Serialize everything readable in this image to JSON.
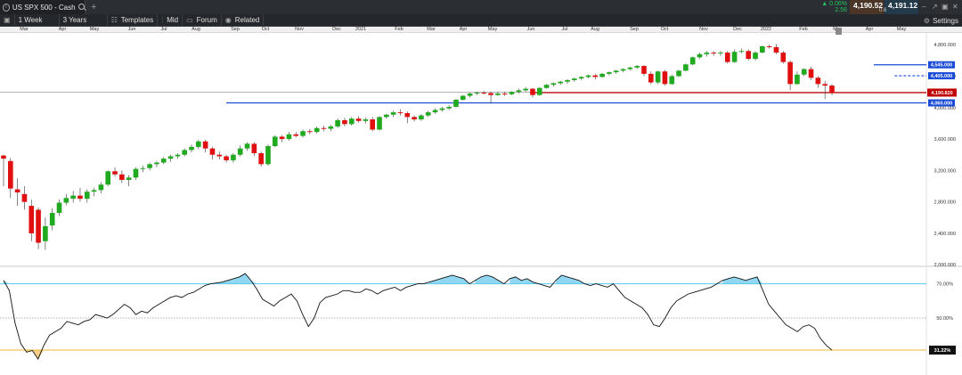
{
  "tab": {
    "title": "US SPX 500 - Cash",
    "add": "+"
  },
  "quote": {
    "change_pct": "▲ 0.06%",
    "change_abs": "2.56",
    "bid": "4,190.52",
    "ask": "4,191.12",
    "spread": "0.6"
  },
  "window_controls": [
    "–",
    "↗",
    "▣",
    "✕"
  ],
  "toolbar": {
    "interval": "1 Week",
    "range": "3 Years",
    "templates": "Templates",
    "price_type": "Mid",
    "forum": "Forum",
    "related": "Related",
    "settings": "Settings"
  },
  "months": [
    "Mar",
    "Apr",
    "May",
    "Jun",
    "Jul",
    "Aug",
    "Sep",
    "Oct",
    "Nov",
    "Dec",
    "2021",
    "Feb",
    "Mar",
    "Apr",
    "May",
    "Jun",
    "Jul",
    "Aug",
    "Sep",
    "Oct",
    "Nov",
    "Dec",
    "2022",
    "Feb",
    "Mar",
    "Apr",
    "May"
  ],
  "colors": {
    "up": "#1faa1f",
    "down": "#e01010",
    "line_blue": "#1a4bd6",
    "current_price": "#c00000",
    "rsi_upper": "#5bc8e8",
    "rsi_lower": "#e8b830",
    "rsi_over_fill": "#7fd0ee",
    "rsi_under_fill": "#f5c77a"
  },
  "chart_data": {
    "type": "candlestick",
    "price_axis": {
      "ticks": [
        2000,
        2400,
        2800,
        3200,
        3600,
        4000,
        4400,
        4800
      ],
      "labels": [
        "2,000.000",
        "2,400.000",
        "2,800.000",
        "3,200.000",
        "3,600.000",
        "4,000.000",
        "4,400.000",
        "4,800.000"
      ],
      "range": [
        1980,
        4950
      ]
    },
    "current_price": {
      "value": 4190.82,
      "label": "4,190.820"
    },
    "horizontal_levels": [
      {
        "value": 4545,
        "label": "4,545.000",
        "style": "solid",
        "from_index": 125
      },
      {
        "value": 4405,
        "label": "4,405.000",
        "style": "dashed",
        "from_index": 128
      },
      {
        "value": 4060,
        "label": "4,060.000",
        "style": "solid",
        "from_index": 32
      }
    ],
    "candles": [
      {
        "o": 3390,
        "h": 3400,
        "l": 3000,
        "c": 3350
      },
      {
        "o": 3320,
        "h": 3360,
        "l": 2850,
        "c": 2970
      },
      {
        "o": 2960,
        "h": 3100,
        "l": 2750,
        "c": 2920
      },
      {
        "o": 2900,
        "h": 3000,
        "l": 2700,
        "c": 2800
      },
      {
        "o": 2750,
        "h": 2830,
        "l": 2300,
        "c": 2400
      },
      {
        "o": 2700,
        "h": 2730,
        "l": 2200,
        "c": 2280
      },
      {
        "o": 2300,
        "h": 2600,
        "l": 2190,
        "c": 2490
      },
      {
        "o": 2500,
        "h": 2720,
        "l": 2440,
        "c": 2660
      },
      {
        "o": 2660,
        "h": 2830,
        "l": 2620,
        "c": 2790
      },
      {
        "o": 2790,
        "h": 2900,
        "l": 2760,
        "c": 2850
      },
      {
        "o": 2840,
        "h": 2940,
        "l": 2790,
        "c": 2880
      },
      {
        "o": 2880,
        "h": 2980,
        "l": 2800,
        "c": 2840
      },
      {
        "o": 2840,
        "h": 2960,
        "l": 2790,
        "c": 2930
      },
      {
        "o": 2930,
        "h": 2980,
        "l": 2870,
        "c": 2950
      },
      {
        "o": 2950,
        "h": 3050,
        "l": 2910,
        "c": 3020
      },
      {
        "o": 3020,
        "h": 3200,
        "l": 3000,
        "c": 3190
      },
      {
        "o": 3190,
        "h": 3240,
        "l": 3120,
        "c": 3150
      },
      {
        "o": 3150,
        "h": 3200,
        "l": 3040,
        "c": 3080
      },
      {
        "o": 3080,
        "h": 3140,
        "l": 3000,
        "c": 3110
      },
      {
        "o": 3110,
        "h": 3240,
        "l": 3080,
        "c": 3220
      },
      {
        "o": 3220,
        "h": 3260,
        "l": 3180,
        "c": 3230
      },
      {
        "o": 3230,
        "h": 3300,
        "l": 3200,
        "c": 3280
      },
      {
        "o": 3280,
        "h": 3320,
        "l": 3240,
        "c": 3300
      },
      {
        "o": 3300,
        "h": 3370,
        "l": 3280,
        "c": 3350
      },
      {
        "o": 3350,
        "h": 3400,
        "l": 3310,
        "c": 3380
      },
      {
        "o": 3380,
        "h": 3420,
        "l": 3350,
        "c": 3400
      },
      {
        "o": 3400,
        "h": 3480,
        "l": 3380,
        "c": 3460
      },
      {
        "o": 3460,
        "h": 3530,
        "l": 3430,
        "c": 3500
      },
      {
        "o": 3500,
        "h": 3590,
        "l": 3470,
        "c": 3570
      },
      {
        "o": 3570,
        "h": 3590,
        "l": 3430,
        "c": 3480
      },
      {
        "o": 3480,
        "h": 3500,
        "l": 3340,
        "c": 3400
      },
      {
        "o": 3400,
        "h": 3440,
        "l": 3340,
        "c": 3380
      },
      {
        "o": 3380,
        "h": 3400,
        "l": 3300,
        "c": 3330
      },
      {
        "o": 3330,
        "h": 3420,
        "l": 3300,
        "c": 3400
      },
      {
        "o": 3400,
        "h": 3520,
        "l": 3380,
        "c": 3480
      },
      {
        "o": 3480,
        "h": 3560,
        "l": 3450,
        "c": 3540
      },
      {
        "o": 3540,
        "h": 3560,
        "l": 3380,
        "c": 3420
      },
      {
        "o": 3420,
        "h": 3440,
        "l": 3250,
        "c": 3280
      },
      {
        "o": 3280,
        "h": 3530,
        "l": 3260,
        "c": 3510
      },
      {
        "o": 3510,
        "h": 3650,
        "l": 3500,
        "c": 3630
      },
      {
        "o": 3630,
        "h": 3650,
        "l": 3560,
        "c": 3600
      },
      {
        "o": 3600,
        "h": 3690,
        "l": 3580,
        "c": 3660
      },
      {
        "o": 3660,
        "h": 3690,
        "l": 3620,
        "c": 3640
      },
      {
        "o": 3640,
        "h": 3720,
        "l": 3620,
        "c": 3700
      },
      {
        "o": 3700,
        "h": 3730,
        "l": 3660,
        "c": 3690
      },
      {
        "o": 3690,
        "h": 3760,
        "l": 3670,
        "c": 3740
      },
      {
        "o": 3740,
        "h": 3770,
        "l": 3700,
        "c": 3730
      },
      {
        "o": 3730,
        "h": 3780,
        "l": 3700,
        "c": 3760
      },
      {
        "o": 3760,
        "h": 3860,
        "l": 3740,
        "c": 3840
      },
      {
        "o": 3840,
        "h": 3870,
        "l": 3760,
        "c": 3790
      },
      {
        "o": 3790,
        "h": 3880,
        "l": 3770,
        "c": 3860
      },
      {
        "o": 3860,
        "h": 3890,
        "l": 3810,
        "c": 3830
      },
      {
        "o": 3830,
        "h": 3870,
        "l": 3800,
        "c": 3850
      },
      {
        "o": 3850,
        "h": 3880,
        "l": 3700,
        "c": 3720
      },
      {
        "o": 3720,
        "h": 3890,
        "l": 3710,
        "c": 3880
      },
      {
        "o": 3880,
        "h": 3920,
        "l": 3860,
        "c": 3910
      },
      {
        "o": 3910,
        "h": 3960,
        "l": 3880,
        "c": 3940
      },
      {
        "o": 3940,
        "h": 3980,
        "l": 3900,
        "c": 3930
      },
      {
        "o": 3930,
        "h": 3950,
        "l": 3800,
        "c": 3880
      },
      {
        "o": 3880,
        "h": 3900,
        "l": 3820,
        "c": 3850
      },
      {
        "o": 3850,
        "h": 3920,
        "l": 3830,
        "c": 3900
      },
      {
        "o": 3900,
        "h": 3960,
        "l": 3880,
        "c": 3940
      },
      {
        "o": 3940,
        "h": 3990,
        "l": 3920,
        "c": 3970
      },
      {
        "o": 3970,
        "h": 4010,
        "l": 3950,
        "c": 3990
      },
      {
        "o": 3990,
        "h": 4030,
        "l": 3970,
        "c": 4010
      },
      {
        "o": 4010,
        "h": 4110,
        "l": 4000,
        "c": 4100
      },
      {
        "o": 4100,
        "h": 4160,
        "l": 4090,
        "c": 4150
      },
      {
        "o": 4150,
        "h": 4190,
        "l": 4130,
        "c": 4180
      },
      {
        "o": 4180,
        "h": 4200,
        "l": 4160,
        "c": 4190
      },
      {
        "o": 4190,
        "h": 4210,
        "l": 4170,
        "c": 4185
      },
      {
        "o": 4185,
        "h": 4200,
        "l": 4050,
        "c": 4160
      },
      {
        "o": 4160,
        "h": 4200,
        "l": 4150,
        "c": 4180
      },
      {
        "o": 4180,
        "h": 4200,
        "l": 4150,
        "c": 4170
      },
      {
        "o": 4170,
        "h": 4210,
        "l": 4160,
        "c": 4200
      },
      {
        "o": 4200,
        "h": 4240,
        "l": 4180,
        "c": 4220
      },
      {
        "o": 4220,
        "h": 4260,
        "l": 4200,
        "c": 4240
      },
      {
        "o": 4240,
        "h": 4250,
        "l": 4130,
        "c": 4160
      },
      {
        "o": 4160,
        "h": 4260,
        "l": 4150,
        "c": 4250
      },
      {
        "o": 4250,
        "h": 4300,
        "l": 4240,
        "c": 4290
      },
      {
        "o": 4290,
        "h": 4320,
        "l": 4270,
        "c": 4310
      },
      {
        "o": 4310,
        "h": 4340,
        "l": 4290,
        "c": 4330
      },
      {
        "o": 4330,
        "h": 4360,
        "l": 4300,
        "c": 4350
      },
      {
        "o": 4350,
        "h": 4380,
        "l": 4330,
        "c": 4370
      },
      {
        "o": 4370,
        "h": 4400,
        "l": 4350,
        "c": 4390
      },
      {
        "o": 4390,
        "h": 4420,
        "l": 4370,
        "c": 4410
      },
      {
        "o": 4410,
        "h": 4430,
        "l": 4360,
        "c": 4390
      },
      {
        "o": 4390,
        "h": 4440,
        "l": 4380,
        "c": 4430
      },
      {
        "o": 4430,
        "h": 4460,
        "l": 4410,
        "c": 4450
      },
      {
        "o": 4450,
        "h": 4480,
        "l": 4430,
        "c": 4470
      },
      {
        "o": 4470,
        "h": 4500,
        "l": 4450,
        "c": 4490
      },
      {
        "o": 4490,
        "h": 4520,
        "l": 4470,
        "c": 4510
      },
      {
        "o": 4510,
        "h": 4540,
        "l": 4490,
        "c": 4530
      },
      {
        "o": 4530,
        "h": 4540,
        "l": 4400,
        "c": 4430
      },
      {
        "o": 4430,
        "h": 4460,
        "l": 4300,
        "c": 4320
      },
      {
        "o": 4320,
        "h": 4470,
        "l": 4300,
        "c": 4460
      },
      {
        "o": 4460,
        "h": 4480,
        "l": 4280,
        "c": 4300
      },
      {
        "o": 4300,
        "h": 4420,
        "l": 4290,
        "c": 4400
      },
      {
        "o": 4400,
        "h": 4480,
        "l": 4390,
        "c": 4470
      },
      {
        "o": 4470,
        "h": 4560,
        "l": 4460,
        "c": 4550
      },
      {
        "o": 4550,
        "h": 4650,
        "l": 4540,
        "c": 4640
      },
      {
        "o": 4640,
        "h": 4700,
        "l": 4620,
        "c": 4680
      },
      {
        "o": 4680,
        "h": 4720,
        "l": 4650,
        "c": 4700
      },
      {
        "o": 4700,
        "h": 4720,
        "l": 4660,
        "c": 4690
      },
      {
        "o": 4690,
        "h": 4720,
        "l": 4660,
        "c": 4700
      },
      {
        "o": 4700,
        "h": 4720,
        "l": 4560,
        "c": 4580
      },
      {
        "o": 4580,
        "h": 4740,
        "l": 4570,
        "c": 4710
      },
      {
        "o": 4710,
        "h": 4750,
        "l": 4690,
        "c": 4720
      },
      {
        "o": 4720,
        "h": 4740,
        "l": 4600,
        "c": 4620
      },
      {
        "o": 4620,
        "h": 4720,
        "l": 4600,
        "c": 4700
      },
      {
        "o": 4700,
        "h": 4790,
        "l": 4690,
        "c": 4780
      },
      {
        "o": 4780,
        "h": 4800,
        "l": 4750,
        "c": 4770
      },
      {
        "o": 4770,
        "h": 4810,
        "l": 4680,
        "c": 4700
      },
      {
        "o": 4700,
        "h": 4720,
        "l": 4560,
        "c": 4580
      },
      {
        "o": 4580,
        "h": 4600,
        "l": 4220,
        "c": 4300
      },
      {
        "o": 4300,
        "h": 4460,
        "l": 4290,
        "c": 4420
      },
      {
        "o": 4420,
        "h": 4500,
        "l": 4400,
        "c": 4490
      },
      {
        "o": 4490,
        "h": 4520,
        "l": 4350,
        "c": 4380
      },
      {
        "o": 4380,
        "h": 4400,
        "l": 4250,
        "c": 4300
      },
      {
        "o": 4300,
        "h": 4340,
        "l": 4110,
        "c": 4280
      },
      {
        "o": 4280,
        "h": 4300,
        "l": 4160,
        "c": 4191
      }
    ],
    "rsi": {
      "label_upper": "70.00%",
      "label_mid": "50.00%",
      "label_current": "31.22%",
      "upper": 70,
      "mid": 50,
      "lower": 31.22,
      "range": [
        25,
        75
      ],
      "values": [
        72,
        66,
        47,
        35,
        30,
        31,
        26,
        34,
        40,
        42,
        44,
        48,
        47,
        46,
        48,
        49,
        52,
        51,
        50,
        52,
        55,
        58,
        56,
        52,
        54,
        53,
        56,
        58,
        60,
        62,
        63,
        62,
        64,
        65,
        67,
        69,
        70,
        70.5,
        71,
        72,
        73,
        74,
        76,
        72,
        67,
        61,
        59,
        57,
        60,
        62,
        64,
        60,
        52,
        45,
        50,
        59,
        62,
        63,
        64,
        66,
        66,
        65,
        65,
        67,
        66,
        64,
        66,
        67,
        68,
        66,
        68,
        69,
        70,
        70,
        71,
        72,
        73,
        74,
        75,
        74,
        73,
        70,
        72,
        74,
        75,
        74,
        72,
        70,
        73,
        74,
        72,
        73,
        71,
        70,
        69,
        68,
        72,
        75,
        74,
        73,
        72,
        70,
        69,
        70,
        69,
        68,
        70,
        66,
        62,
        60,
        58,
        56,
        52,
        46,
        45,
        50,
        56,
        60,
        62,
        64,
        65,
        66,
        67,
        68,
        70,
        72,
        73,
        74,
        73,
        72,
        73,
        74,
        66,
        58,
        54,
        50,
        46,
        44,
        42,
        45,
        46,
        44,
        38,
        34,
        31.22
      ]
    }
  }
}
